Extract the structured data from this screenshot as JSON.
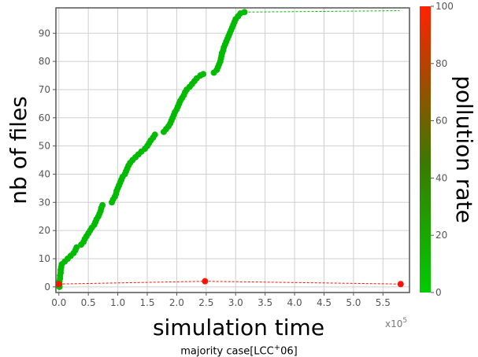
{
  "chart_data": {
    "type": "scatter",
    "xlabel": "simulation time",
    "ylabel": "nb of files",
    "x_multiplier_label": "x10",
    "x_multiplier_exp": "5",
    "x_ticks": [
      "0.0",
      "0.5",
      "1.0",
      "1.5",
      "2.0",
      "2.5",
      "3.0",
      "3.5",
      "4.0",
      "4.5",
      "5.0",
      "5.5"
    ],
    "y_ticks": [
      "0",
      "10",
      "20",
      "30",
      "40",
      "50",
      "60",
      "70",
      "80",
      "90"
    ],
    "xlim": [
      -0.05,
      5.95
    ],
    "ylim": [
      -2,
      99
    ],
    "grid": true,
    "colorbar": {
      "label": "pollution rate",
      "ticks": [
        "0",
        "20",
        "40",
        "60",
        "80",
        "100"
      ],
      "range": [
        0,
        100
      ],
      "color_low": "#00cc00",
      "color_mid": "#3a7a00",
      "color_high": "#ff2200"
    },
    "series": [
      {
        "color": "#00bb00",
        "points": [
          [
            0.01,
            0
          ],
          [
            0.01,
            1
          ],
          [
            0.01,
            2
          ],
          [
            0.02,
            3
          ],
          [
            0.02,
            4
          ],
          [
            0.03,
            5
          ],
          [
            0.03,
            6
          ],
          [
            0.04,
            7
          ],
          [
            0.05,
            8
          ],
          [
            0.1,
            9
          ],
          [
            0.15,
            10
          ],
          [
            0.2,
            11
          ],
          [
            0.25,
            12
          ],
          [
            0.28,
            13
          ],
          [
            0.3,
            14
          ],
          [
            0.38,
            15
          ],
          [
            0.42,
            16
          ],
          [
            0.44,
            17
          ],
          [
            0.47,
            18
          ],
          [
            0.5,
            19
          ],
          [
            0.53,
            20
          ],
          [
            0.56,
            21
          ],
          [
            0.6,
            22
          ],
          [
            0.62,
            23
          ],
          [
            0.64,
            24
          ],
          [
            0.67,
            25
          ],
          [
            0.69,
            26
          ],
          [
            0.71,
            27
          ],
          [
            0.72,
            28
          ],
          [
            0.74,
            29
          ],
          [
            0.9,
            30
          ],
          [
            0.92,
            31
          ],
          [
            0.95,
            32
          ],
          [
            0.97,
            33
          ],
          [
            0.98,
            34
          ],
          [
            1.0,
            35
          ],
          [
            1.02,
            36
          ],
          [
            1.04,
            37
          ],
          [
            1.06,
            38
          ],
          [
            1.08,
            39
          ],
          [
            1.12,
            40
          ],
          [
            1.14,
            41
          ],
          [
            1.16,
            42
          ],
          [
            1.18,
            43
          ],
          [
            1.21,
            44
          ],
          [
            1.25,
            45
          ],
          [
            1.3,
            46
          ],
          [
            1.35,
            47
          ],
          [
            1.4,
            48
          ],
          [
            1.46,
            49
          ],
          [
            1.5,
            50
          ],
          [
            1.53,
            51
          ],
          [
            1.56,
            52
          ],
          [
            1.6,
            53
          ],
          [
            1.63,
            54
          ],
          [
            1.78,
            55
          ],
          [
            1.82,
            56
          ],
          [
            1.86,
            57
          ],
          [
            1.89,
            58
          ],
          [
            1.91,
            59
          ],
          [
            1.93,
            60
          ],
          [
            1.95,
            61
          ],
          [
            1.97,
            62
          ],
          [
            2.0,
            63
          ],
          [
            2.02,
            64
          ],
          [
            2.04,
            65
          ],
          [
            2.06,
            66
          ],
          [
            2.09,
            67
          ],
          [
            2.12,
            68
          ],
          [
            2.14,
            69
          ],
          [
            2.17,
            70
          ],
          [
            2.22,
            71
          ],
          [
            2.26,
            72
          ],
          [
            2.3,
            73
          ],
          [
            2.34,
            74
          ],
          [
            2.4,
            75
          ],
          [
            2.45,
            75.5
          ],
          [
            2.63,
            76
          ],
          [
            2.68,
            77
          ],
          [
            2.7,
            78
          ],
          [
            2.72,
            79
          ],
          [
            2.74,
            80
          ],
          [
            2.75,
            81
          ],
          [
            2.76,
            82
          ],
          [
            2.77,
            83
          ],
          [
            2.79,
            84
          ],
          [
            2.8,
            85
          ],
          [
            2.82,
            86
          ],
          [
            2.84,
            87
          ],
          [
            2.86,
            88
          ],
          [
            2.88,
            89
          ],
          [
            2.9,
            90
          ],
          [
            2.92,
            91
          ],
          [
            2.94,
            92
          ],
          [
            2.96,
            93
          ],
          [
            2.98,
            94
          ],
          [
            3.0,
            95
          ],
          [
            3.04,
            96
          ],
          [
            3.08,
            97
          ],
          [
            3.15,
            97.5
          ],
          [
            5.78,
            98
          ]
        ]
      },
      {
        "color": "#ff1100",
        "points": [
          [
            0.0,
            1
          ],
          [
            2.48,
            2
          ],
          [
            5.8,
            1
          ]
        ]
      }
    ]
  },
  "caption": {
    "text_before": "majority case[LCC",
    "superscript": "+",
    "text_after": "06]"
  }
}
